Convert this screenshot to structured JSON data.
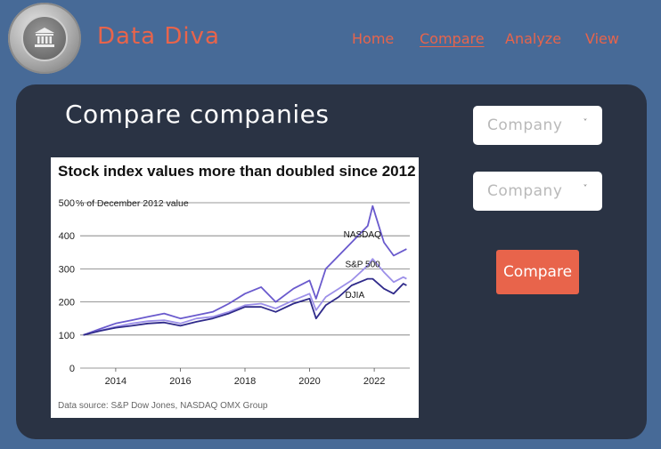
{
  "header": {
    "brand": "Data Diva",
    "logo_icon": "bank-building-icon",
    "nav": [
      {
        "label": "Home",
        "active": false
      },
      {
        "label": "Compare",
        "active": true
      },
      {
        "label": "Analyze",
        "active": false
      },
      {
        "label": "View",
        "active": false
      }
    ]
  },
  "main": {
    "title": "Compare companies",
    "select1": {
      "placeholder": "Company"
    },
    "select2": {
      "placeholder": "Company"
    },
    "compare_button": "Compare"
  },
  "colors": {
    "background": "#476a97",
    "card": "#2a3344",
    "accent": "#e8644b",
    "nasdaq": "#6a5acd",
    "sp500": "#9c8fe8",
    "djia": "#2f2a8a"
  },
  "chart_data": {
    "type": "line",
    "title": "Stock index values more than doubled since 2012",
    "ylabel": "% of December 2012 value",
    "source": "Data source: S&P Dow Jones, NASDAQ OMX Group",
    "xlim": [
      2012.9,
      2023.1
    ],
    "ylim": [
      0,
      500
    ],
    "yticks": [
      0,
      100,
      200,
      300,
      400,
      500
    ],
    "xticks": [
      2014,
      2016,
      2018,
      2020,
      2022
    ],
    "grid": "horizontal",
    "series": [
      {
        "name": "NASDAQ",
        "x": [
          2013.0,
          2013.5,
          2014.0,
          2014.5,
          2015.0,
          2015.5,
          2016.0,
          2016.5,
          2017.0,
          2017.5,
          2018.0,
          2018.5,
          2018.95,
          2019.5,
          2020.0,
          2020.2,
          2020.5,
          2020.9,
          2021.3,
          2021.8,
          2021.95,
          2022.3,
          2022.6,
          2022.9,
          2023.0
        ],
        "y": [
          100,
          118,
          135,
          145,
          155,
          165,
          150,
          160,
          170,
          195,
          225,
          245,
          200,
          240,
          265,
          210,
          300,
          340,
          380,
          430,
          490,
          380,
          340,
          355,
          360
        ]
      },
      {
        "name": "S&P 500",
        "x": [
          2013.0,
          2013.5,
          2014.0,
          2014.5,
          2015.0,
          2015.5,
          2016.0,
          2016.5,
          2017.0,
          2017.5,
          2018.0,
          2018.5,
          2018.95,
          2019.5,
          2020.0,
          2020.2,
          2020.5,
          2020.9,
          2021.3,
          2021.8,
          2021.95,
          2022.3,
          2022.6,
          2022.9,
          2023.0
        ],
        "y": [
          100,
          113,
          125,
          135,
          142,
          145,
          135,
          150,
          155,
          170,
          190,
          195,
          180,
          205,
          225,
          175,
          215,
          240,
          265,
          310,
          330,
          290,
          260,
          275,
          270
        ]
      },
      {
        "name": "DJIA",
        "x": [
          2013.0,
          2013.5,
          2014.0,
          2014.5,
          2015.0,
          2015.5,
          2016.0,
          2016.5,
          2017.0,
          2017.5,
          2018.0,
          2018.5,
          2018.95,
          2019.5,
          2020.0,
          2020.2,
          2020.5,
          2020.9,
          2021.3,
          2021.8,
          2021.95,
          2022.3,
          2022.6,
          2022.9,
          2023.0
        ],
        "y": [
          100,
          112,
          122,
          128,
          135,
          138,
          128,
          140,
          150,
          165,
          185,
          185,
          170,
          195,
          210,
          150,
          190,
          215,
          250,
          270,
          270,
          240,
          225,
          255,
          250
        ]
      }
    ]
  }
}
